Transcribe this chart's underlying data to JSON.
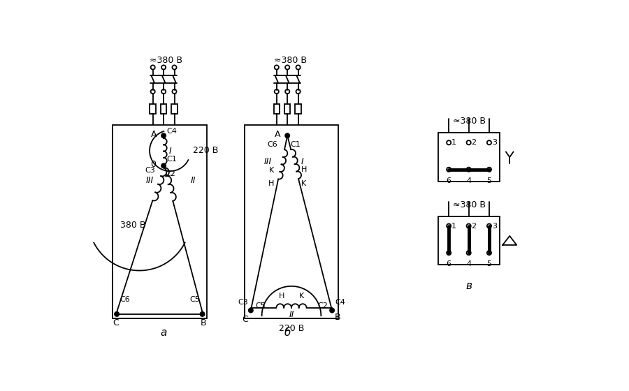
{
  "bg_color": "#ffffff",
  "line_color": "#000000",
  "panel_a_label": "а",
  "panel_b_label": "б",
  "panel_v_label": "в",
  "voltage_380": "≈380 В",
  "voltage_220_a": "220 В",
  "voltage_380_inside": "380 В",
  "voltage_220_b": "220 В"
}
